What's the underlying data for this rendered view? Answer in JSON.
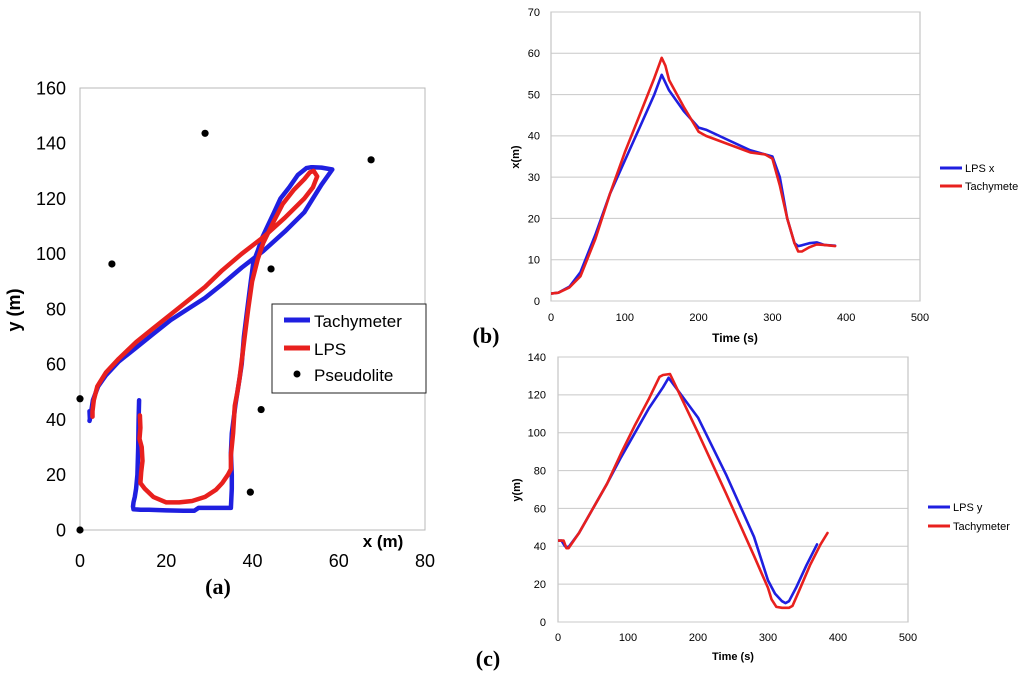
{
  "chart_data": [
    {
      "id": "a",
      "type": "line",
      "panel_label": "(a)",
      "xlabel": "x (m)",
      "ylabel": "y (m)",
      "xlim": [
        0,
        80
      ],
      "ylim": [
        0,
        160
      ],
      "xticks": [
        "0",
        "20",
        "40",
        "60",
        "80"
      ],
      "yticks": [
        "0",
        "20",
        "40",
        "60",
        "80",
        "100",
        "120",
        "140",
        "160"
      ],
      "legend": {
        "position": "right",
        "entries": [
          "Tachymeter",
          "LPS",
          "Pseudolite"
        ]
      },
      "series": [
        {
          "name": "Tachymeter",
          "color": "#1f1fe0",
          "x": [
            13.7,
            13.6,
            13.5,
            13.3,
            13.0,
            12.7,
            12.4,
            12.3,
            12.4,
            14,
            16,
            20,
            24,
            26.5,
            27.5,
            30,
            33,
            35,
            35.2,
            35.2,
            35.0,
            35.2,
            36.0,
            37,
            37.5,
            38,
            38.8,
            39.6,
            40.2,
            41.2,
            42.3,
            43.5,
            45,
            46.5,
            48.5,
            50.5,
            52.5,
            53.5,
            54,
            56,
            58.5,
            56,
            52,
            47.5,
            42.5,
            37.5,
            33,
            29,
            25,
            21,
            17,
            13,
            9,
            6,
            4.2,
            3,
            2.5,
            2.2,
            2.3,
            2.2
          ],
          "y": [
            47,
            40,
            30,
            20,
            15,
            12,
            10,
            8.5,
            7.5,
            7.3,
            7.3,
            7.1,
            7.0,
            7.0,
            8.0,
            8.0,
            8.0,
            8.0,
            15,
            20,
            28,
            35,
            45,
            55,
            60,
            70,
            80,
            90,
            97,
            101,
            106,
            110,
            115,
            120,
            124,
            128.5,
            131,
            131.3,
            131.3,
            131.2,
            130.5,
            125,
            115,
            108,
            101,
            95,
            89,
            84,
            80,
            76,
            71,
            66,
            61,
            56,
            52,
            47,
            42,
            39.5,
            40,
            43
          ]
        },
        {
          "name": "LPS",
          "color": "#e8201e",
          "x": [
            13.9,
            14.0,
            13.8,
            14.3,
            14.5,
            14.2,
            14.0,
            15,
            17,
            20,
            23,
            26,
            29,
            31.5,
            33,
            34.3,
            35.0,
            35.0,
            35.5,
            35.9,
            36.5,
            37,
            37.4,
            38.2,
            39,
            39.9,
            41.2,
            42.5,
            45,
            47,
            49.5,
            52,
            53.3,
            54.2,
            55,
            54.5,
            54,
            52,
            47.5,
            42.5,
            37.5,
            33,
            29,
            25,
            21,
            17,
            13,
            9,
            6,
            4,
            3.2,
            2.9,
            2.9
          ],
          "y": [
            41.5,
            37,
            33,
            30,
            25,
            21,
            17,
            15,
            12,
            10,
            10,
            10.5,
            12,
            14.5,
            17,
            20,
            22,
            27,
            35,
            45,
            50,
            55,
            60,
            70,
            80,
            90,
            98,
            104,
            112,
            118,
            123,
            127,
            129.5,
            130,
            128,
            126,
            124,
            120,
            113,
            106,
            100,
            94,
            88,
            83,
            78,
            73,
            68,
            62,
            57,
            52,
            47,
            43,
            41
          ]
        },
        {
          "name": "Pseudolite",
          "type": "scatter",
          "color": "#000000",
          "x": [
            0,
            0,
            7.4,
            29,
            44.3,
            42,
            39.5,
            67.5
          ],
          "y": [
            0,
            47.5,
            96.3,
            143.6,
            94.5,
            43.6,
            13.7,
            134
          ]
        }
      ]
    },
    {
      "id": "b",
      "type": "line",
      "panel_label": "(b)",
      "xlabel": "Time  (s)",
      "ylabel": "x(m)",
      "xlim": [
        0,
        500
      ],
      "ylim": [
        0,
        70
      ],
      "xticks": [
        "0",
        "100",
        "200",
        "300",
        "400",
        "500"
      ],
      "yticks": [
        "0",
        "10",
        "20",
        "30",
        "40",
        "50",
        "60",
        "70"
      ],
      "legend": {
        "position": "right",
        "entries": [
          "LPS x",
          "Tachymete"
        ]
      },
      "series": [
        {
          "name": "LPS x",
          "color": "#1f1fe0",
          "x": [
            0,
            10,
            25,
            40,
            60,
            80,
            100,
            120,
            140,
            150,
            160,
            180,
            200,
            210,
            240,
            270,
            290,
            300,
            310,
            320,
            330,
            335,
            340,
            350,
            360,
            370,
            385
          ],
          "y": [
            1.8,
            2.0,
            3.5,
            7.0,
            16,
            26,
            34,
            42,
            50,
            54.8,
            51,
            46,
            42,
            41.5,
            39,
            36.5,
            35.5,
            35,
            30,
            20,
            14,
            13.3,
            13.5,
            14,
            14.2,
            13.6,
            13.4
          ]
        },
        {
          "name": "Tachymete",
          "color": "#e8201e",
          "x": [
            0,
            10,
            25,
            40,
            60,
            80,
            100,
            120,
            140,
            150,
            155,
            160,
            180,
            200,
            210,
            240,
            270,
            290,
            300,
            310,
            320,
            330,
            335,
            340,
            350,
            360,
            370,
            385
          ],
          "y": [
            1.8,
            2.0,
            3.3,
            6.0,
            15,
            26,
            36,
            45,
            54,
            58.9,
            57,
            53.5,
            47,
            41,
            40,
            38,
            36,
            35.5,
            34.5,
            28,
            20,
            14,
            12,
            12,
            13,
            13.7,
            13.6,
            13.3
          ]
        }
      ]
    },
    {
      "id": "c",
      "type": "line",
      "panel_label": "(c)",
      "xlabel": "Time (s)",
      "ylabel": "y(m)",
      "xlim": [
        0,
        500
      ],
      "ylim": [
        0,
        140
      ],
      "xticks": [
        "0",
        "100",
        "200",
        "300",
        "400",
        "500"
      ],
      "yticks": [
        "0",
        "20",
        "40",
        "60",
        "80",
        "100",
        "120",
        "140"
      ],
      "legend": {
        "position": "right",
        "entries": [
          "LPS y",
          "Tachymeter"
        ]
      },
      "series": [
        {
          "name": "LPS y",
          "color": "#1f1fe0",
          "x": [
            0,
            5,
            10,
            15,
            30,
            50,
            70,
            90,
            110,
            130,
            150,
            158,
            200,
            240,
            280,
            300,
            310,
            320,
            325,
            330,
            340,
            355,
            370
          ],
          "y": [
            43,
            43,
            40,
            39.5,
            47,
            60,
            73,
            87,
            100,
            113,
            124,
            129,
            108,
            78,
            45,
            22,
            15,
            11,
            10,
            11,
            18,
            30,
            41
          ]
        },
        {
          "name": "Tachymeter",
          "color": "#e8201e",
          "x": [
            0,
            8,
            12,
            15,
            30,
            50,
            70,
            90,
            110,
            130,
            145,
            150,
            160,
            200,
            240,
            280,
            300,
            305,
            312,
            320,
            330,
            335,
            345,
            360,
            375,
            385
          ],
          "y": [
            43,
            43,
            39,
            39,
            47,
            60,
            73,
            89,
            104,
            118,
            129.5,
            130.5,
            131,
            100,
            68,
            35,
            18,
            12,
            8,
            7.5,
            7.5,
            8.5,
            17,
            30,
            41,
            47
          ]
        }
      ]
    }
  ]
}
